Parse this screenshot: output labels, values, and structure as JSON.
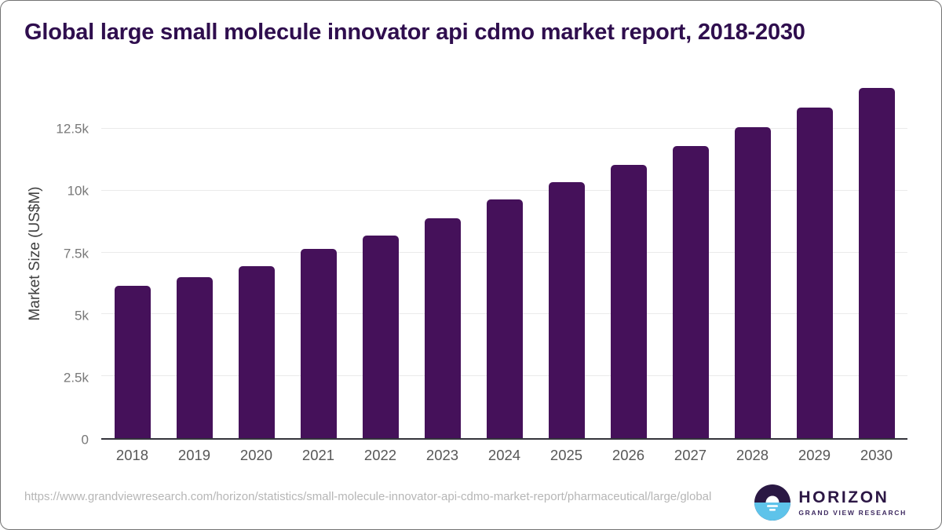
{
  "chart_data": {
    "type": "bar",
    "title": "Global large small molecule innovator api cdmo market report, 2018-2030",
    "categories": [
      "2018",
      "2019",
      "2020",
      "2021",
      "2022",
      "2023",
      "2024",
      "2025",
      "2026",
      "2027",
      "2028",
      "2029",
      "2030"
    ],
    "values": [
      6150,
      6500,
      6950,
      7650,
      8200,
      8900,
      9650,
      10350,
      11050,
      11800,
      12550,
      13350,
      14150
    ],
    "xlabel": "",
    "ylabel": "Market Size (US$M)",
    "ylim": [
      0,
      14500
    ],
    "yticks": [
      {
        "value": 0,
        "label": "0"
      },
      {
        "value": 2500,
        "label": "2.5k"
      },
      {
        "value": 5000,
        "label": "5k"
      },
      {
        "value": 7500,
        "label": "7.5k"
      },
      {
        "value": 10000,
        "label": "10k"
      },
      {
        "value": 12500,
        "label": "12.5k"
      }
    ],
    "grid": true,
    "legend_position": "none",
    "bar_color": "#45115a"
  },
  "colors": {
    "title": "#2f0e4e",
    "bar": "#45115a",
    "gridline": "#eaeaea",
    "axis_line": "#34343c",
    "y_tick": "#787878",
    "x_label": "#575757",
    "url": "#b6b6b6",
    "logo_dark": "#2a1843",
    "logo_blue": "#5ec3ea"
  },
  "footer": {
    "source_url": "https://www.grandviewresearch.com/horizon/statistics/small-molecule-innovator-api-cdmo-market-report/pharmaceutical/large/global",
    "logo": {
      "name": "HORIZON",
      "tagline": "GRAND VIEW RESEARCH",
      "mark": "horizon-sun-circle-icon"
    }
  }
}
